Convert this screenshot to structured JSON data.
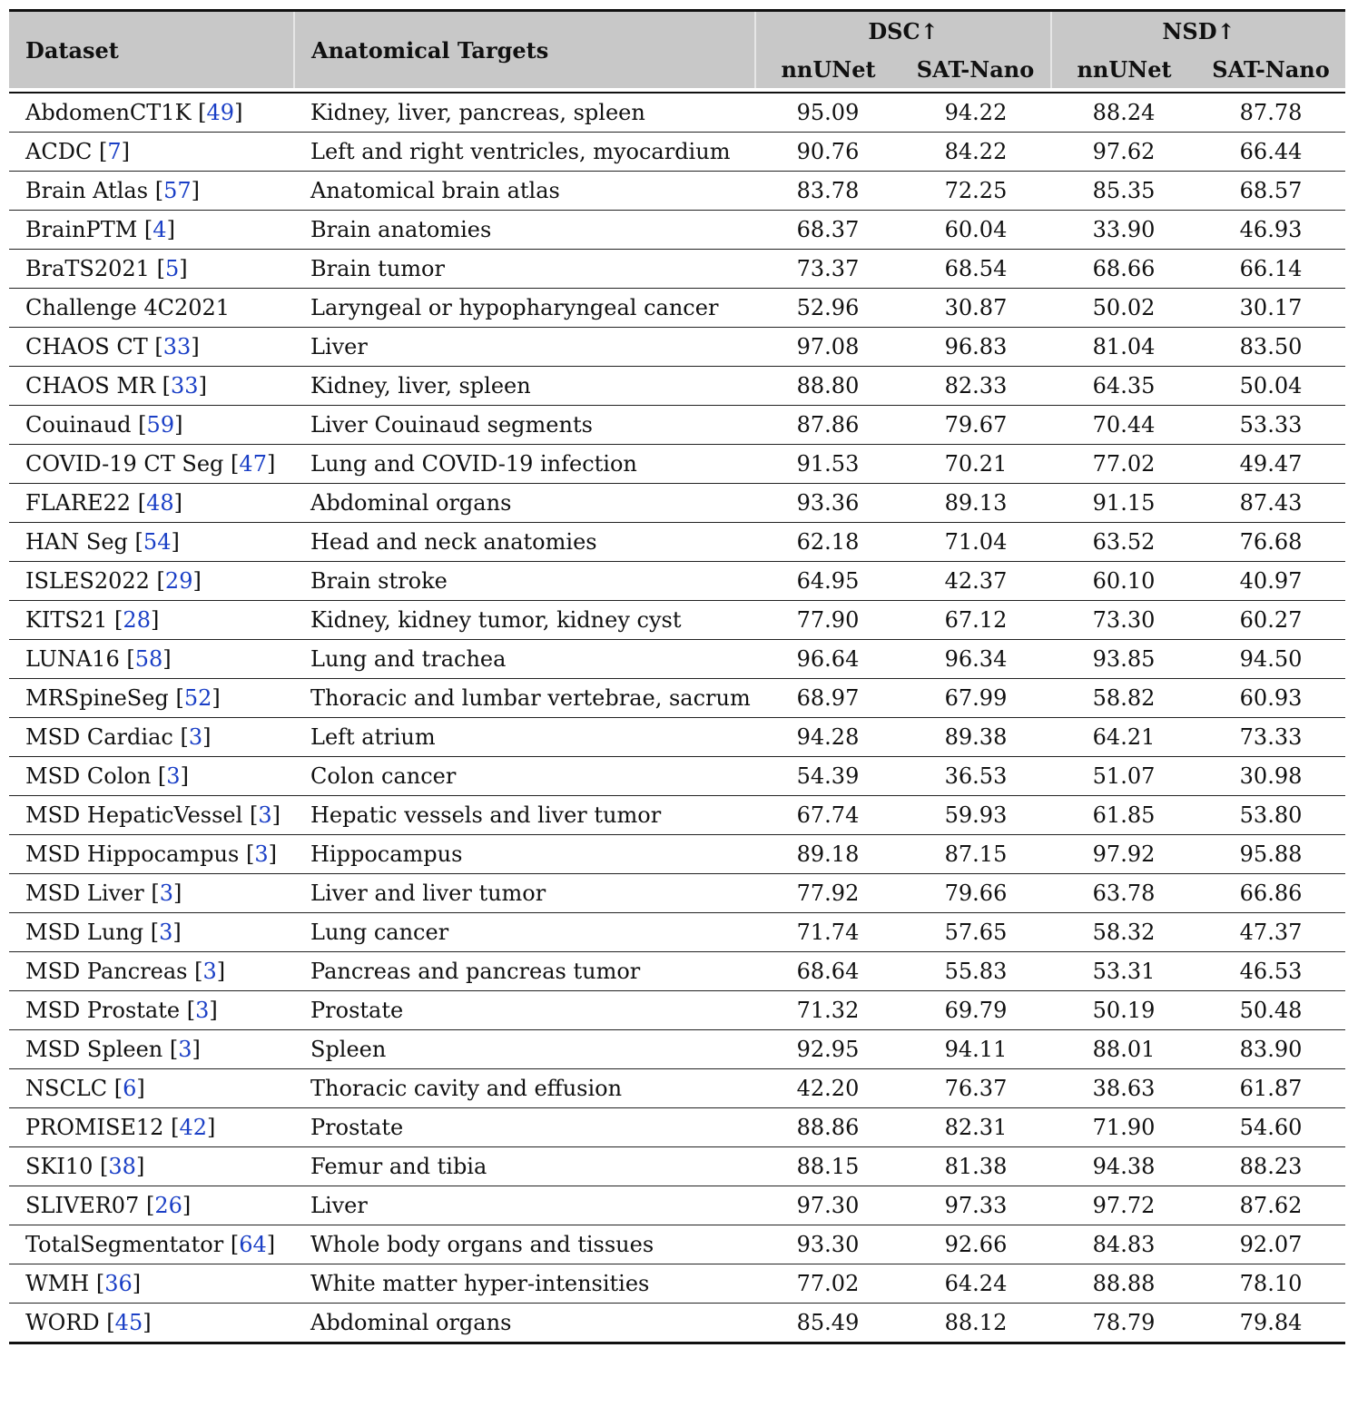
{
  "header": {
    "dataset": "Dataset",
    "targets": "Anatomical Targets",
    "dsc": "DSC↑",
    "nsd": "NSD↑",
    "dsc_nnunet": "nnUNet",
    "dsc_satnano": "SAT-Nano",
    "nsd_nnunet": "nnUNet",
    "nsd_satnano": "SAT-Nano"
  },
  "rows": [
    {
      "name": "AbdomenCT1K",
      "ref": "49",
      "targets": "Kidney, liver, pancreas, spleen",
      "dsc_nnunet": "95.09",
      "dsc_satnano": "94.22",
      "nsd_nnunet": "88.24",
      "nsd_satnano": "87.78"
    },
    {
      "name": "ACDC",
      "ref": "7",
      "targets": "Left and right ventricles, myocardium",
      "dsc_nnunet": "90.76",
      "dsc_satnano": "84.22",
      "nsd_nnunet": "97.62",
      "nsd_satnano": "66.44"
    },
    {
      "name": "Brain Atlas",
      "ref": "57",
      "targets": "Anatomical brain atlas",
      "dsc_nnunet": "83.78",
      "dsc_satnano": "72.25",
      "nsd_nnunet": "85.35",
      "nsd_satnano": "68.57"
    },
    {
      "name": "BrainPTM",
      "ref": "4",
      "targets": "Brain anatomies",
      "dsc_nnunet": "68.37",
      "dsc_satnano": "60.04",
      "nsd_nnunet": "33.90",
      "nsd_satnano": "46.93"
    },
    {
      "name": "BraTS2021",
      "ref": "5",
      "targets": "Brain tumor",
      "dsc_nnunet": "73.37",
      "dsc_satnano": "68.54",
      "nsd_nnunet": "68.66",
      "nsd_satnano": "66.14"
    },
    {
      "name": "Challenge 4C2021",
      "ref": "",
      "targets": "Laryngeal or hypopharyngeal cancer",
      "dsc_nnunet": "52.96",
      "dsc_satnano": "30.87",
      "nsd_nnunet": "50.02",
      "nsd_satnano": "30.17"
    },
    {
      "name": "CHAOS CT",
      "ref": "33",
      "targets": "Liver",
      "dsc_nnunet": "97.08",
      "dsc_satnano": "96.83",
      "nsd_nnunet": "81.04",
      "nsd_satnano": "83.50"
    },
    {
      "name": "CHAOS MR",
      "ref": "33",
      "targets": "Kidney, liver, spleen",
      "dsc_nnunet": "88.80",
      "dsc_satnano": "82.33",
      "nsd_nnunet": "64.35",
      "nsd_satnano": "50.04"
    },
    {
      "name": "Couinaud",
      "ref": "59",
      "targets": "Liver Couinaud segments",
      "dsc_nnunet": "87.86",
      "dsc_satnano": "79.67",
      "nsd_nnunet": "70.44",
      "nsd_satnano": "53.33"
    },
    {
      "name": "COVID-19 CT Seg",
      "ref": "47",
      "targets": "Lung and COVID-19 infection",
      "dsc_nnunet": "91.53",
      "dsc_satnano": "70.21",
      "nsd_nnunet": "77.02",
      "nsd_satnano": "49.47"
    },
    {
      "name": "FLARE22",
      "ref": "48",
      "targets": "Abdominal organs",
      "dsc_nnunet": "93.36",
      "dsc_satnano": "89.13",
      "nsd_nnunet": "91.15",
      "nsd_satnano": "87.43"
    },
    {
      "name": "HAN Seg",
      "ref": "54",
      "targets": "Head and neck anatomies",
      "dsc_nnunet": "62.18",
      "dsc_satnano": "71.04",
      "nsd_nnunet": "63.52",
      "nsd_satnano": "76.68"
    },
    {
      "name": "ISLES2022",
      "ref": "29",
      "targets": "Brain stroke",
      "dsc_nnunet": "64.95",
      "dsc_satnano": "42.37",
      "nsd_nnunet": "60.10",
      "nsd_satnano": "40.97"
    },
    {
      "name": "KITS21",
      "ref": "28",
      "targets": "Kidney, kidney tumor, kidney cyst",
      "dsc_nnunet": "77.90",
      "dsc_satnano": "67.12",
      "nsd_nnunet": "73.30",
      "nsd_satnano": "60.27"
    },
    {
      "name": "LUNA16",
      "ref": "58",
      "targets": "Lung and trachea",
      "dsc_nnunet": "96.64",
      "dsc_satnano": "96.34",
      "nsd_nnunet": "93.85",
      "nsd_satnano": "94.50"
    },
    {
      "name": "MRSpineSeg",
      "ref": "52",
      "targets": "Thoracic and lumbar vertebrae, sacrum",
      "dsc_nnunet": "68.97",
      "dsc_satnano": "67.99",
      "nsd_nnunet": "58.82",
      "nsd_satnano": "60.93"
    },
    {
      "name": "MSD Cardiac",
      "ref": "3",
      "targets": "Left atrium",
      "dsc_nnunet": "94.28",
      "dsc_satnano": "89.38",
      "nsd_nnunet": "64.21",
      "nsd_satnano": "73.33"
    },
    {
      "name": "MSD Colon",
      "ref": "3",
      "targets": "Colon cancer",
      "dsc_nnunet": "54.39",
      "dsc_satnano": "36.53",
      "nsd_nnunet": "51.07",
      "nsd_satnano": "30.98"
    },
    {
      "name": "MSD HepaticVessel",
      "ref": "3",
      "targets": "Hepatic vessels and liver tumor",
      "dsc_nnunet": "67.74",
      "dsc_satnano": "59.93",
      "nsd_nnunet": "61.85",
      "nsd_satnano": "53.80"
    },
    {
      "name": "MSD Hippocampus",
      "ref": "3",
      "targets": "Hippocampus",
      "dsc_nnunet": "89.18",
      "dsc_satnano": "87.15",
      "nsd_nnunet": "97.92",
      "nsd_satnano": "95.88"
    },
    {
      "name": "MSD Liver",
      "ref": "3",
      "targets": "Liver and liver tumor",
      "dsc_nnunet": "77.92",
      "dsc_satnano": "79.66",
      "nsd_nnunet": "63.78",
      "nsd_satnano": "66.86"
    },
    {
      "name": "MSD Lung",
      "ref": "3",
      "targets": "Lung cancer",
      "dsc_nnunet": "71.74",
      "dsc_satnano": "57.65",
      "nsd_nnunet": "58.32",
      "nsd_satnano": "47.37"
    },
    {
      "name": "MSD Pancreas",
      "ref": "3",
      "targets": "Pancreas and pancreas tumor",
      "dsc_nnunet": "68.64",
      "dsc_satnano": "55.83",
      "nsd_nnunet": "53.31",
      "nsd_satnano": "46.53"
    },
    {
      "name": "MSD Prostate",
      "ref": "3",
      "targets": "Prostate",
      "dsc_nnunet": "71.32",
      "dsc_satnano": "69.79",
      "nsd_nnunet": "50.19",
      "nsd_satnano": "50.48"
    },
    {
      "name": "MSD Spleen",
      "ref": "3",
      "targets": "Spleen",
      "dsc_nnunet": "92.95",
      "dsc_satnano": "94.11",
      "nsd_nnunet": "88.01",
      "nsd_satnano": "83.90"
    },
    {
      "name": "NSCLC",
      "ref": "6",
      "targets": "Thoracic cavity and effusion",
      "dsc_nnunet": "42.20",
      "dsc_satnano": "76.37",
      "nsd_nnunet": "38.63",
      "nsd_satnano": "61.87"
    },
    {
      "name": "PROMISE12",
      "ref": "42",
      "targets": "Prostate",
      "dsc_nnunet": "88.86",
      "dsc_satnano": "82.31",
      "nsd_nnunet": "71.90",
      "nsd_satnano": "54.60"
    },
    {
      "name": "SKI10",
      "ref": "38",
      "targets": "Femur and tibia",
      "dsc_nnunet": "88.15",
      "dsc_satnano": "81.38",
      "nsd_nnunet": "94.38",
      "nsd_satnano": "88.23"
    },
    {
      "name": "SLIVER07",
      "ref": "26",
      "targets": "Liver",
      "dsc_nnunet": "97.30",
      "dsc_satnano": "97.33",
      "nsd_nnunet": "97.72",
      "nsd_satnano": "87.62"
    },
    {
      "name": "TotalSegmentator",
      "ref": "64",
      "targets": "Whole body organs and tissues",
      "dsc_nnunet": "93.30",
      "dsc_satnano": "92.66",
      "nsd_nnunet": "84.83",
      "nsd_satnano": "92.07"
    },
    {
      "name": "WMH",
      "ref": "36",
      "targets": "White matter hyper-intensities",
      "dsc_nnunet": "77.02",
      "dsc_satnano": "64.24",
      "nsd_nnunet": "88.88",
      "nsd_satnano": "78.10"
    },
    {
      "name": "WORD",
      "ref": "45",
      "targets": "Abdominal organs",
      "dsc_nnunet": "85.49",
      "dsc_satnano": "88.12",
      "nsd_nnunet": "78.79",
      "nsd_satnano": "79.84"
    }
  ]
}
